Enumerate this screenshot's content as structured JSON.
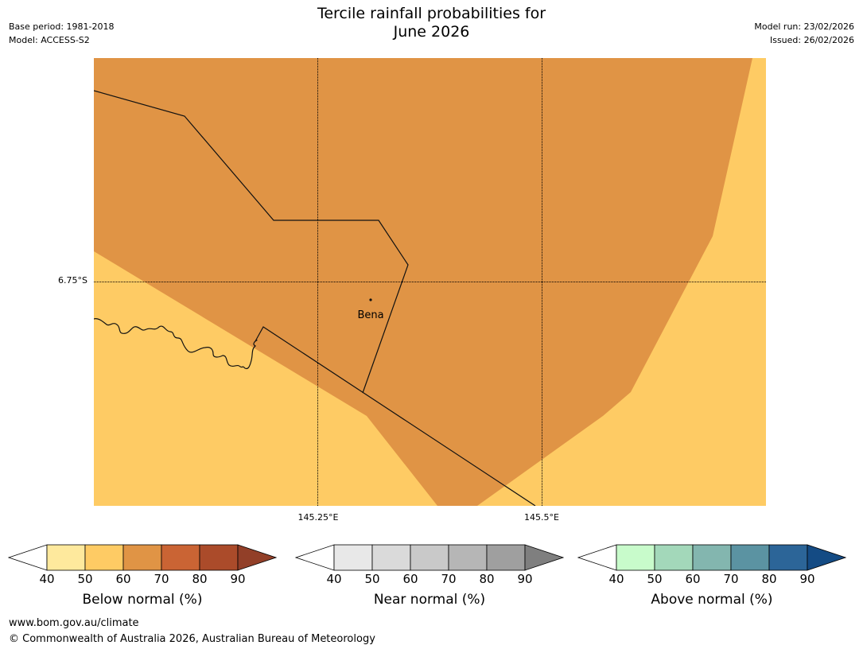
{
  "title": {
    "line1": "Tercile rainfall probabilities for",
    "line2": "June 2026"
  },
  "meta": {
    "base_period": "Base period: 1981-2018",
    "model": "Model: ACCESS-S2",
    "model_run": "Model run: 23/02/2026",
    "issued": "Issued: 26/02/2026"
  },
  "map": {
    "latitude_label": "6.75°S",
    "longitude_labels": [
      "145.25°E",
      "145.5°E"
    ],
    "place": "Bena",
    "colors": {
      "cat_50_60": "#fecb64",
      "cat_60_70": "#e09445",
      "boundary": "#111111",
      "grid": "#000000"
    }
  },
  "colorbars": [
    {
      "label": "Below normal (%)",
      "ticks": [
        "40",
        "50",
        "60",
        "70",
        "80",
        "90"
      ],
      "colors": [
        "#fee99d",
        "#fecb64",
        "#e09445",
        "#ca6434",
        "#ab4b2a"
      ],
      "low_color": "#ffffff",
      "high_color": "#923f28"
    },
    {
      "label": "Near normal (%)",
      "ticks": [
        "40",
        "50",
        "60",
        "70",
        "80",
        "90"
      ],
      "colors": [
        "#e8e8e8",
        "#dadada",
        "#c9c9c9",
        "#b6b6b6",
        "#9f9f9f"
      ],
      "low_color": "#ffffff",
      "high_color": "#7f7f7f"
    },
    {
      "label": "Above normal (%)",
      "ticks": [
        "40",
        "50",
        "60",
        "70",
        "80",
        "90"
      ],
      "colors": [
        "#c8fbcb",
        "#a3d8ba",
        "#83b6af",
        "#5b93a2",
        "#2c6598"
      ],
      "low_color": "#ffffff",
      "high_color": "#144b84"
    }
  ],
  "footer": {
    "website": "www.bom.gov.au/climate",
    "copyright": "© Commonwealth of Australia 2026, Australian Bureau of Meteorology"
  }
}
